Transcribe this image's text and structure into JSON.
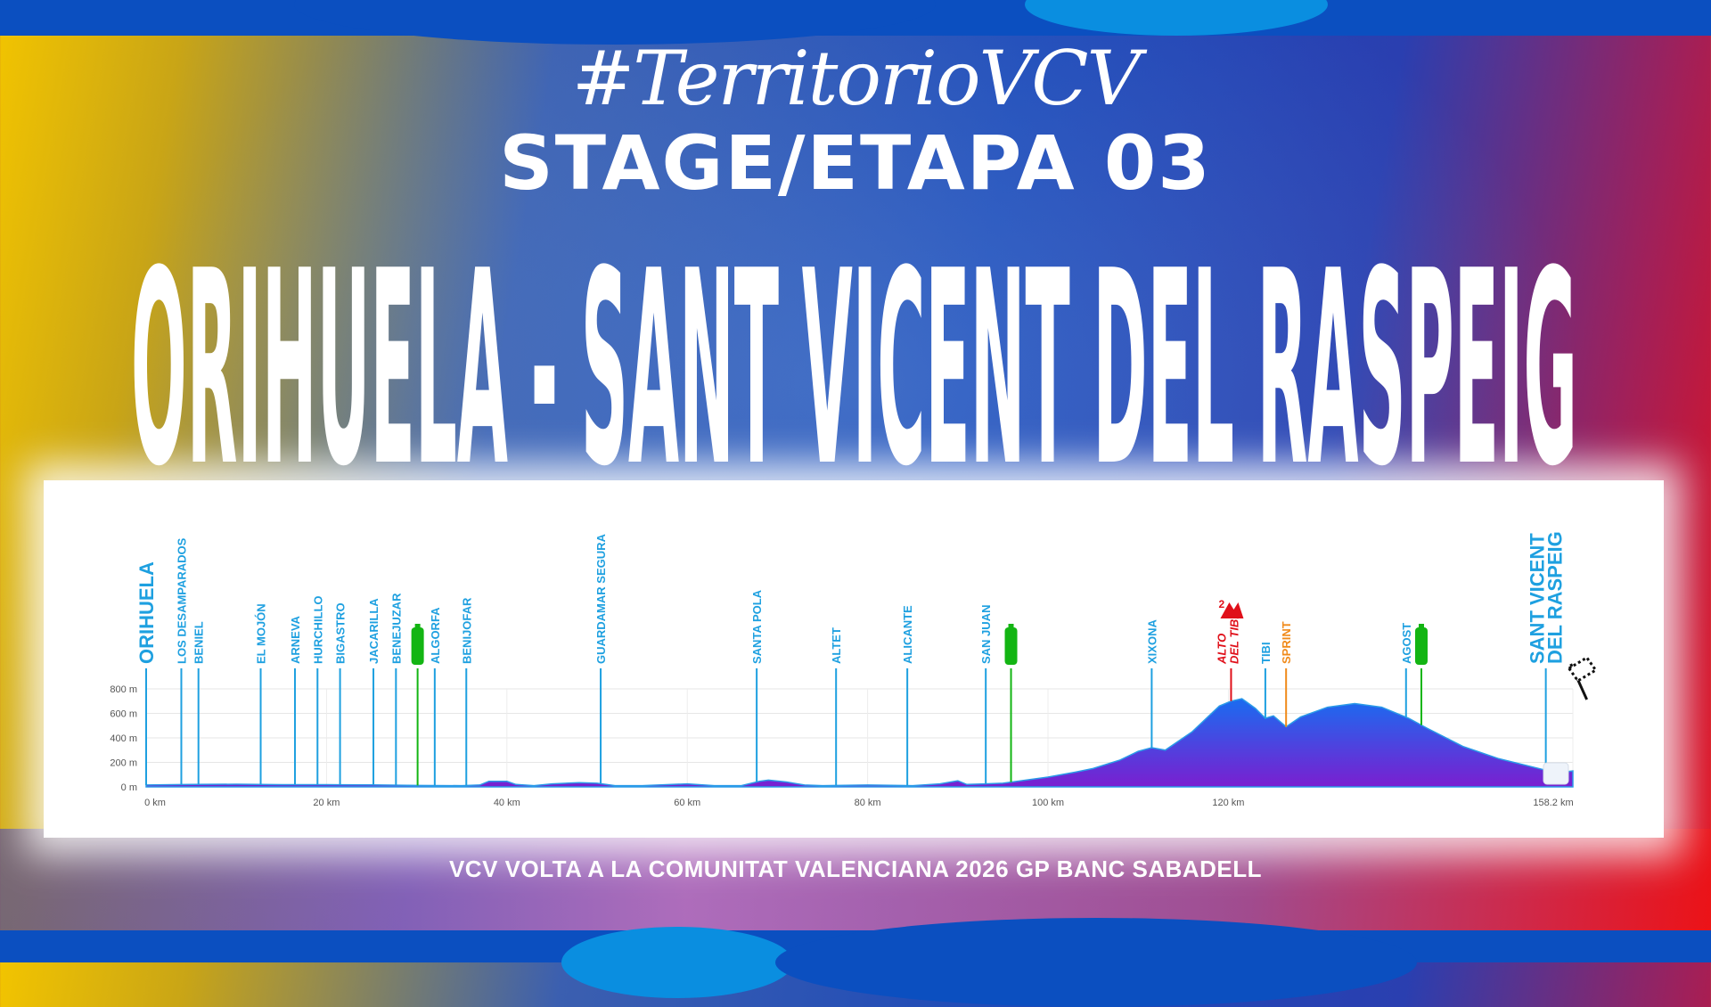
{
  "header": {
    "hashtag": "#TerritorioVCV",
    "stage": "STAGE/ETAPA 03",
    "route": "ORIHUELA - SANT VICENT DEL RASPEIG"
  },
  "footer": {
    "text": "VCV VOLTA A LA COMUNITAT VALENCIANA 2026 GP BANC SABADELL"
  },
  "colors": {
    "place": "#1ea0e0",
    "climb": "#e0101a",
    "sprint": "#f08a1a",
    "feed": "#13b513",
    "profile_top": "#1a6cf0",
    "profile_bottom": "#7a1fd0"
  },
  "chart_data": {
    "type": "area",
    "xlabel": "",
    "ylabel": "",
    "xlim": [
      0,
      158.2
    ],
    "ylim": [
      0,
      800
    ],
    "x_ticks": [
      {
        "v": 0,
        "label": "0 km"
      },
      {
        "v": 20,
        "label": "20 km"
      },
      {
        "v": 40,
        "label": "40 km"
      },
      {
        "v": 60,
        "label": "60 km"
      },
      {
        "v": 80,
        "label": "80 km"
      },
      {
        "v": 100,
        "label": "100 km"
      },
      {
        "v": 120,
        "label": "120 km"
      },
      {
        "v": 158.2,
        "label": "158.2 km"
      }
    ],
    "y_ticks": [
      {
        "v": 0,
        "label": "0 m"
      },
      {
        "v": 200,
        "label": "200 m"
      },
      {
        "v": 400,
        "label": "400 m"
      },
      {
        "v": 600,
        "label": "600 m"
      },
      {
        "v": 800,
        "label": "800 m"
      }
    ],
    "grid": true,
    "profile": {
      "km": [
        0,
        5,
        10,
        15,
        20,
        25,
        30,
        35,
        37,
        38,
        40,
        41,
        43,
        45,
        48,
        50,
        52,
        55,
        60,
        63,
        66,
        68,
        69,
        71,
        73,
        75,
        80,
        85,
        88,
        90,
        91,
        93,
        95,
        98,
        100,
        103,
        105,
        108,
        110,
        111.5,
        113,
        116,
        119,
        120.3,
        121.5,
        123,
        124.1,
        125,
        126.4,
        128,
        131,
        134,
        137,
        140,
        142,
        146,
        150,
        155,
        157,
        158.2
      ],
      "elev": [
        15,
        20,
        22,
        18,
        18,
        16,
        12,
        10,
        15,
        45,
        45,
        20,
        10,
        25,
        35,
        30,
        10,
        10,
        25,
        10,
        10,
        45,
        55,
        40,
        15,
        10,
        15,
        10,
        25,
        50,
        20,
        25,
        30,
        60,
        80,
        120,
        150,
        220,
        290,
        320,
        300,
        450,
        660,
        700,
        720,
        640,
        560,
        580,
        490,
        570,
        650,
        680,
        650,
        560,
        480,
        330,
        230,
        140,
        120,
        130
      ]
    },
    "markers": [
      {
        "km": 0,
        "label": "ORIHUELA",
        "kind": "start"
      },
      {
        "km": 3.9,
        "label": "LOS DESAMPARADOS",
        "kind": "place"
      },
      {
        "km": 5.8,
        "label": "BENIEL",
        "kind": "place"
      },
      {
        "km": 12.7,
        "label": "EL MOJÓN",
        "kind": "place"
      },
      {
        "km": 16.5,
        "label": "ARNEVA",
        "kind": "place"
      },
      {
        "km": 19.0,
        "label": "HURCHILLO",
        "kind": "place"
      },
      {
        "km": 21.5,
        "label": "BIGASTRO",
        "kind": "place"
      },
      {
        "km": 25.2,
        "label": "JACARILLA",
        "kind": "place"
      },
      {
        "km": 27.7,
        "label": "BENEJUZAR",
        "kind": "place"
      },
      {
        "km": 30.1,
        "label": "",
        "kind": "feed",
        "icon": "bottle-icon"
      },
      {
        "km": 32.0,
        "label": "ALGORFA",
        "kind": "place"
      },
      {
        "km": 35.5,
        "label": "BENIJOFAR",
        "kind": "place"
      },
      {
        "km": 50.4,
        "label": "GUARDAMAR SEGURA",
        "kind": "place"
      },
      {
        "km": 67.7,
        "label": "SANTA POLA",
        "kind": "place"
      },
      {
        "km": 76.5,
        "label": "ALTET",
        "kind": "place"
      },
      {
        "km": 84.4,
        "label": "ALICANTE",
        "kind": "place"
      },
      {
        "km": 93.1,
        "label": "SAN JUAN",
        "kind": "place"
      },
      {
        "km": 95.9,
        "label": "",
        "kind": "feed",
        "icon": "bottle-icon"
      },
      {
        "km": 111.5,
        "label": "XIXONA",
        "kind": "place"
      },
      {
        "km": 120.3,
        "label": "ALTO",
        "label2": "DEL TIBI",
        "kind": "climb",
        "category": "2",
        "icon": "mountain-icon"
      },
      {
        "km": 124.1,
        "label": "TIBI",
        "kind": "place"
      },
      {
        "km": 126.4,
        "label": "SPRINT",
        "kind": "sprint"
      },
      {
        "km": 139.7,
        "label": "AGOST",
        "kind": "place"
      },
      {
        "km": 141.4,
        "label": "",
        "kind": "feed",
        "icon": "bottle-icon"
      },
      {
        "km": 155.2,
        "label": "SANT VICENT",
        "label2": "DEL RASPEIG",
        "kind": "finish",
        "icon": "checkered-flag-icon"
      }
    ]
  }
}
